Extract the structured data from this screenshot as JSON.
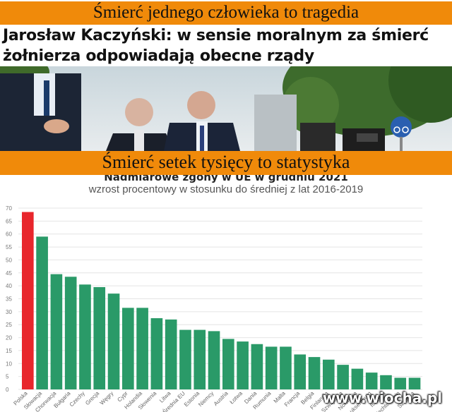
{
  "top_banner": "Śmierć jednego człowieka to tragedia",
  "headline": "Jarosław Kaczyński: w sensie moralnym za śmierć żołnierza odpowiadają obecne rządy",
  "middle_banner": "Śmierć setek tysięcy to statystyka",
  "watermark": "www.wiocha.pl",
  "colors": {
    "banner": "#f08a0a",
    "highlight_bar": "#e8262c",
    "bar": "#2a9a68"
  },
  "chart_data": {
    "type": "bar",
    "title": "Nadmiarowe zgony w UE w grudniu 2021",
    "subtitle": "wzrost procentowy w stosunku do średniej z lat 2016-2019",
    "ylim": [
      0,
      70
    ],
    "yticks": [
      0,
      5,
      10,
      15,
      20,
      25,
      30,
      35,
      40,
      45,
      50,
      55,
      60,
      65,
      70
    ],
    "grid": true,
    "categories": [
      "Polska",
      "Słowacja",
      "Chorwacja",
      "Bułgaria",
      "Czechy",
      "Grecja",
      "Węgry",
      "Cypr",
      "Holandia",
      "Słowenia",
      "Litwa",
      "Średnia EU",
      "Estonia",
      "Niemcy",
      "Austria",
      "Łotwa",
      "Dania",
      "Rumunia",
      "Malta",
      "Francja",
      "Belgia",
      "Finlandia",
      "Szwajcaria",
      "Norwegia",
      "Luksemburg",
      "Islandia",
      "Liechtenstein",
      "Szwecja"
    ],
    "values": [
      68.5,
      59,
      44.5,
      43.5,
      40.5,
      39.5,
      37,
      31.5,
      31.5,
      27.5,
      27,
      23,
      23,
      22.5,
      19.5,
      18.5,
      17.5,
      16.5,
      16.5,
      13.5,
      12.5,
      11.5,
      9.5,
      8,
      6.5,
      5.5,
      4.5,
      4.5
    ],
    "highlight_index": 0
  }
}
